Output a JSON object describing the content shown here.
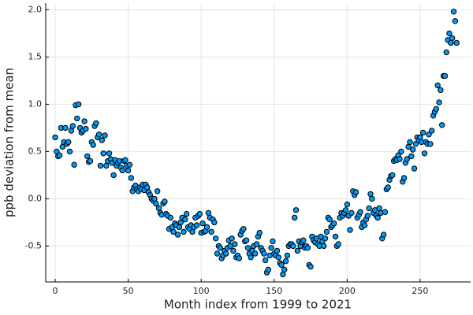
{
  "chart_data": {
    "type": "scatter",
    "xlabel": "Month index from 1999 to 2021",
    "ylabel": "ppb deviation from mean",
    "xlim": [
      -6.5,
      284.6
    ],
    "ylim": [
      -0.88,
      2.07
    ],
    "xticks": [
      0,
      50,
      100,
      150,
      200,
      250
    ],
    "yticks": [
      -0.5,
      {
        "value": 0,
        "label": "0.0"
      },
      0.5,
      {
        "value": 1,
        "label": "1.0"
      },
      1.5,
      {
        "value": 2,
        "label": "2.0"
      }
    ],
    "grid": true,
    "series": [
      {
        "color": "#009afa",
        "x": [
          0,
          1,
          2,
          3,
          4,
          5,
          6,
          7,
          8,
          9,
          10,
          11,
          12,
          13,
          14,
          15,
          16,
          17,
          18,
          19,
          20,
          21,
          22,
          23,
          24,
          25,
          26,
          27,
          28,
          29,
          30,
          31,
          32,
          33,
          34,
          35,
          36,
          37,
          38,
          39,
          40,
          41,
          42,
          43,
          44,
          45,
          46,
          47,
          48,
          49,
          50,
          51,
          52,
          53,
          54,
          55,
          56,
          57,
          58,
          59,
          60,
          61,
          62,
          63,
          64,
          65,
          66,
          67,
          68,
          69,
          70,
          71,
          72,
          73,
          74,
          75,
          76,
          77,
          78,
          79,
          80,
          81,
          82,
          83,
          84,
          85,
          86,
          87,
          88,
          89,
          90,
          91,
          92,
          93,
          94,
          95,
          96,
          97,
          98,
          99,
          100,
          101,
          102,
          103,
          104,
          105,
          106,
          107,
          108,
          109,
          110,
          111,
          112,
          113,
          114,
          115,
          116,
          117,
          118,
          119,
          120,
          121,
          122,
          123,
          124,
          125,
          126,
          127,
          128,
          129,
          130,
          131,
          132,
          133,
          134,
          135,
          136,
          137,
          138,
          139,
          140,
          141,
          142,
          143,
          144,
          145,
          146,
          147,
          148,
          149,
          150,
          151,
          152,
          153,
          154,
          155,
          156,
          157,
          158,
          159,
          160,
          161,
          162,
          163,
          164,
          165,
          166,
          167,
          168,
          169,
          170,
          171,
          172,
          173,
          174,
          175,
          176,
          177,
          178,
          179,
          180,
          181,
          182,
          183,
          184,
          185,
          186,
          187,
          188,
          189,
          190,
          191,
          192,
          193,
          194,
          195,
          196,
          197,
          198,
          199,
          200,
          201,
          202,
          203,
          204,
          205,
          206,
          207,
          208,
          209,
          210,
          211,
          212,
          213,
          214,
          215,
          216,
          217,
          218,
          219,
          220,
          221,
          222,
          223,
          224,
          225,
          226,
          227,
          228,
          229,
          230,
          231,
          232,
          233,
          234,
          235,
          236,
          237,
          238,
          239,
          240,
          241,
          242,
          243,
          244,
          245,
          246,
          247,
          248,
          249,
          250,
          251,
          252,
          253,
          254,
          255,
          256,
          257,
          258,
          259,
          260,
          261,
          262,
          263,
          264,
          265,
          266,
          267,
          268,
          269,
          270,
          271,
          272,
          273,
          274,
          275
        ],
        "values": [
          0.65,
          0.5,
          0.45,
          0.46,
          0.75,
          0.55,
          0.6,
          0.75,
          0.58,
          0.6,
          0.5,
          0.72,
          0.77,
          0.36,
          0.99,
          0.85,
          1.0,
          0.75,
          0.7,
          0.72,
          0.82,
          0.74,
          0.45,
          0.39,
          0.4,
          0.6,
          0.57,
          0.77,
          0.8,
          0.65,
          0.68,
          0.35,
          0.62,
          0.48,
          0.67,
          0.35,
          0.4,
          0.48,
          0.42,
          0.38,
          0.25,
          0.41,
          0.35,
          0.38,
          0.4,
          0.33,
          0.3,
          0.4,
          0.41,
          0.35,
          0.3,
          0.36,
          0.22,
          0.08,
          0.12,
          0.14,
          0.1,
          0.08,
          0.12,
          0.1,
          0.15,
          0.09,
          0.15,
          0.12,
          0.07,
          0.04,
          0.0,
          -0.02,
          0.0,
          -0.05,
          0.08,
          -0.1,
          -0.15,
          -0.17,
          -0.05,
          -0.03,
          -0.16,
          -0.18,
          -0.32,
          -0.2,
          -0.3,
          -0.35,
          -0.26,
          -0.28,
          -0.38,
          -0.3,
          -0.25,
          -0.2,
          -0.35,
          -0.22,
          -0.16,
          -0.3,
          -0.32,
          -0.28,
          -0.35,
          -0.3,
          -0.2,
          -0.28,
          -0.18,
          -0.16,
          -0.36,
          -0.26,
          -0.35,
          -0.34,
          -0.3,
          -0.15,
          -0.2,
          -0.35,
          -0.22,
          -0.25,
          -0.42,
          -0.58,
          -0.5,
          -0.52,
          -0.63,
          -0.6,
          -0.55,
          -0.58,
          -0.52,
          -0.44,
          -0.5,
          -0.42,
          -0.55,
          -0.48,
          -0.62,
          -0.6,
          -0.63,
          -0.38,
          -0.34,
          -0.32,
          -0.45,
          -0.44,
          -0.52,
          -0.58,
          -0.62,
          -0.55,
          -0.5,
          -0.58,
          -0.48,
          -0.4,
          -0.36,
          -0.52,
          -0.55,
          -0.58,
          -0.65,
          -0.78,
          -0.75,
          -0.6,
          -0.52,
          -0.45,
          -0.58,
          -0.6,
          -0.55,
          -0.62,
          -0.68,
          -0.7,
          -0.8,
          -0.75,
          -0.66,
          -0.6,
          -0.5,
          -0.48,
          -0.48,
          -0.5,
          -0.2,
          -0.12,
          -0.55,
          -0.45,
          -0.5,
          -0.46,
          -0.44,
          -0.52,
          -0.5,
          -0.52,
          -0.7,
          -0.72,
          -0.4,
          -0.44,
          -0.46,
          -0.42,
          -0.48,
          -0.5,
          -0.4,
          -0.45,
          -0.5,
          -0.42,
          -0.35,
          -0.2,
          -0.22,
          -0.3,
          -0.28,
          -0.26,
          -0.4,
          -0.5,
          -0.48,
          -0.2,
          -0.15,
          -0.18,
          -0.15,
          -0.12,
          -0.06,
          -0.18,
          -0.33,
          -0.15,
          0.08,
          0.04,
          0.07,
          -0.2,
          -0.17,
          -0.14,
          -0.3,
          -0.25,
          -0.28,
          -0.22,
          -0.18,
          -0.1,
          0.05,
          0.0,
          -0.15,
          -0.12,
          -0.18,
          -0.2,
          -0.1,
          -0.15,
          -0.42,
          -0.38,
          -0.14,
          0.1,
          0.12,
          0.2,
          0.24,
          0.25,
          0.4,
          0.42,
          0.41,
          0.46,
          0.42,
          0.5,
          0.18,
          0.22,
          0.38,
          0.42,
          0.55,
          0.6,
          0.45,
          0.52,
          0.32,
          0.58,
          0.65,
          0.62,
          0.65,
          0.6,
          0.7,
          0.48,
          0.6,
          0.58,
          0.68,
          0.58,
          0.72,
          0.88,
          0.92,
          0.95,
          1.2,
          1.02,
          1.15,
          0.78,
          1.3,
          1.3,
          1.55,
          1.68,
          1.75,
          1.65,
          1.7,
          1.98,
          1.88,
          1.65
        ]
      }
    ]
  }
}
